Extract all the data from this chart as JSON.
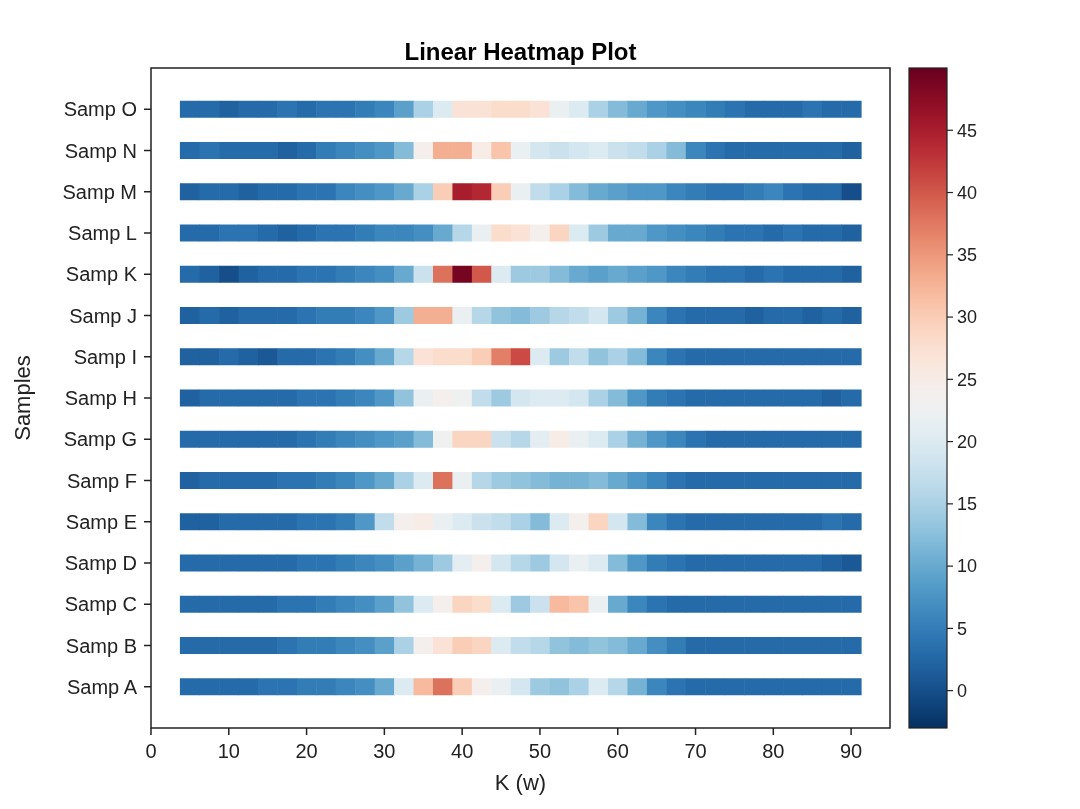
{
  "chart_data": {
    "type": "heatmap",
    "title": "Linear Heatmap Plot",
    "xlabel": "K (w)",
    "ylabel": "Samples",
    "grid": false,
    "x": [
      5,
      7.5,
      10,
      12.5,
      15,
      17.5,
      20,
      22.5,
      25,
      27.5,
      30,
      32.5,
      35,
      37.5,
      40,
      42.5,
      45,
      47.5,
      50,
      52.5,
      55,
      57.5,
      60,
      62.5,
      65,
      67.5,
      70,
      72.5,
      75,
      77.5,
      80,
      82.5,
      85,
      87.5,
      90
    ],
    "xlim": [
      0,
      95
    ],
    "xticks": [
      0,
      10,
      20,
      30,
      40,
      50,
      60,
      70,
      80,
      90
    ],
    "y_categories": [
      "Samp O",
      "Samp N",
      "Samp M",
      "Samp L",
      "Samp K",
      "Samp J",
      "Samp I",
      "Samp H",
      "Samp G",
      "Samp F",
      "Samp E",
      "Samp D",
      "Samp C",
      "Samp B",
      "Samp A"
    ],
    "clim": [
      -3,
      50
    ],
    "cticks": [
      0,
      5,
      10,
      15,
      20,
      25,
      30,
      35,
      40,
      45
    ],
    "cells": [
      [
        3,
        3,
        2,
        3,
        3,
        4,
        3,
        4,
        4,
        5,
        6,
        9,
        15,
        20,
        27,
        27,
        28,
        28,
        27,
        22,
        20,
        15,
        12,
        10,
        8,
        7,
        6,
        5,
        4,
        3,
        3,
        3,
        4,
        3,
        3
      ],
      [
        3,
        4,
        3,
        3,
        3,
        2,
        3,
        5,
        6,
        7,
        8,
        12,
        24,
        33,
        33,
        25,
        31,
        22,
        19,
        18,
        19,
        20,
        18,
        17,
        15,
        12,
        6,
        4,
        3,
        3,
        3,
        3,
        3,
        3,
        2
      ],
      [
        2,
        3,
        3,
        2,
        3,
        3,
        4,
        4,
        6,
        7,
        8,
        10,
        15,
        30,
        45,
        44,
        30,
        22,
        17,
        15,
        12,
        10,
        9,
        8,
        8,
        6,
        5,
        4,
        4,
        5,
        6,
        4,
        3,
        3,
        0
      ],
      [
        3,
        3,
        4,
        4,
        3,
        2,
        3,
        4,
        4,
        5,
        6,
        6,
        7,
        10,
        16,
        22,
        28,
        27,
        24,
        29,
        20,
        14,
        10,
        10,
        8,
        7,
        6,
        5,
        4,
        4,
        3,
        4,
        3,
        3,
        2
      ],
      [
        3,
        2,
        0,
        2,
        3,
        3,
        4,
        4,
        5,
        6,
        7,
        10,
        18,
        38,
        49,
        40,
        20,
        14,
        14,
        12,
        10,
        9,
        10,
        9,
        8,
        6,
        5,
        4,
        4,
        3,
        4,
        3,
        3,
        3,
        2
      ],
      [
        2,
        3,
        2,
        3,
        3,
        3,
        4,
        5,
        5,
        6,
        8,
        14,
        33,
        33,
        22,
        16,
        13,
        12,
        14,
        16,
        17,
        19,
        14,
        11,
        6,
        4,
        3,
        3,
        3,
        2,
        3,
        3,
        2,
        3,
        2
      ],
      [
        2,
        2,
        3,
        2,
        1,
        3,
        3,
        4,
        5,
        7,
        10,
        16,
        27,
        28,
        28,
        30,
        37,
        41,
        20,
        14,
        17,
        13,
        15,
        12,
        6,
        4,
        3,
        3,
        3,
        3,
        3,
        3,
        3,
        3,
        3
      ],
      [
        2,
        3,
        3,
        3,
        3,
        3,
        4,
        4,
        5,
        6,
        8,
        13,
        22,
        24,
        23,
        17,
        14,
        19,
        20,
        20,
        19,
        15,
        12,
        8,
        5,
        4,
        3,
        3,
        3,
        3,
        3,
        3,
        3,
        2,
        3
      ],
      [
        3,
        3,
        3,
        3,
        3,
        3,
        4,
        5,
        6,
        7,
        8,
        9,
        12,
        23,
        29,
        29,
        18,
        16,
        21,
        25,
        22,
        20,
        15,
        11,
        8,
        6,
        4,
        3,
        3,
        3,
        3,
        3,
        3,
        3,
        3
      ],
      [
        2,
        3,
        3,
        3,
        3,
        4,
        4,
        5,
        6,
        8,
        10,
        15,
        20,
        38,
        22,
        16,
        14,
        13,
        12,
        11,
        11,
        12,
        10,
        8,
        6,
        4,
        3,
        3,
        3,
        3,
        3,
        3,
        3,
        3,
        3
      ],
      [
        2,
        2,
        3,
        3,
        3,
        3,
        4,
        4,
        5,
        8,
        17,
        24,
        25,
        22,
        20,
        18,
        17,
        15,
        12,
        20,
        24,
        29,
        19,
        12,
        6,
        4,
        3,
        3,
        3,
        3,
        3,
        3,
        3,
        4,
        3
      ],
      [
        3,
        3,
        3,
        3,
        3,
        3,
        4,
        4,
        5,
        6,
        7,
        9,
        11,
        14,
        21,
        24,
        19,
        16,
        14,
        19,
        22,
        20,
        12,
        8,
        5,
        4,
        3,
        3,
        3,
        3,
        3,
        3,
        3,
        2,
        1
      ],
      [
        3,
        3,
        3,
        3,
        3,
        4,
        4,
        5,
        6,
        7,
        9,
        13,
        20,
        24,
        29,
        28,
        20,
        14,
        18,
        32,
        31,
        22,
        10,
        6,
        4,
        3,
        3,
        3,
        3,
        3,
        3,
        3,
        3,
        3,
        3
      ],
      [
        3,
        3,
        3,
        3,
        3,
        4,
        5,
        5,
        6,
        7,
        9,
        15,
        24,
        27,
        30,
        29,
        20,
        17,
        16,
        13,
        12,
        13,
        12,
        10,
        7,
        5,
        3,
        3,
        3,
        3,
        3,
        3,
        3,
        3,
        3
      ],
      [
        3,
        3,
        3,
        3,
        4,
        4,
        5,
        5,
        6,
        7,
        10,
        20,
        32,
        38,
        30,
        24,
        22,
        19,
        14,
        13,
        15,
        20,
        16,
        11,
        6,
        4,
        3,
        3,
        3,
        3,
        3,
        3,
        3,
        3,
        3
      ]
    ]
  }
}
